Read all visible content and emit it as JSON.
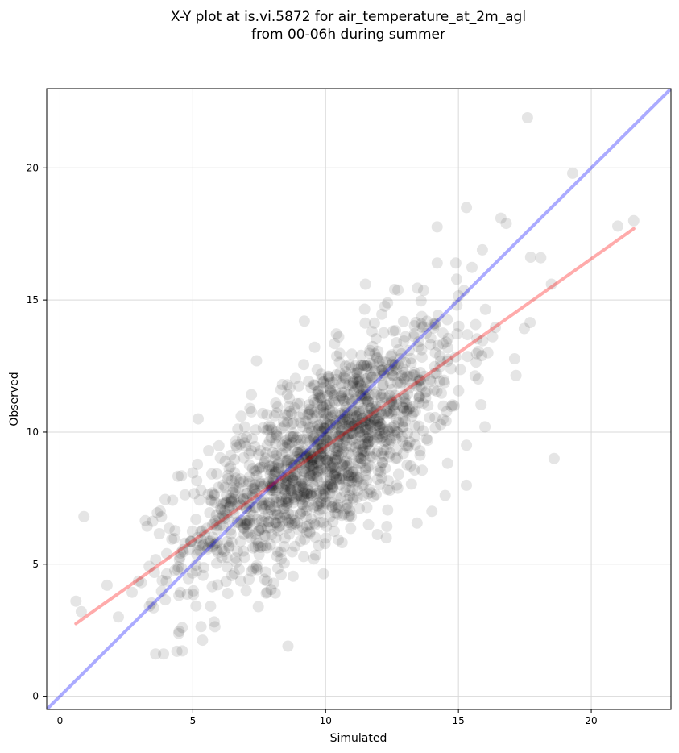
{
  "chart_data": {
    "type": "scatter",
    "title": "X-Y plot at is.vi.5872 for air_temperature_at_2m_agl",
    "subtitle": "from 00-06h during summer",
    "xlabel": "Simulated",
    "ylabel": "Observed",
    "xlim": [
      -0.5,
      23
    ],
    "ylim": [
      -0.5,
      23
    ],
    "xticks": [
      0,
      5,
      10,
      15,
      20
    ],
    "yticks": [
      0,
      5,
      10,
      15,
      20
    ],
    "grid": true,
    "point_color": "#000000",
    "point_alpha": 0.1,
    "identity_line": {
      "color": "#0000ff",
      "alpha": 0.33,
      "from": [
        -0.5,
        -0.5
      ],
      "to": [
        23,
        23
      ]
    },
    "regression_line": {
      "color": "#ff0000",
      "alpha": 0.33,
      "from": [
        0.6,
        2.75
      ],
      "to": [
        21.6,
        17.7
      ]
    },
    "outlier_points": {
      "x": [
        17.6,
        19.3,
        15.3,
        16.6,
        16.8,
        21.0,
        21.6,
        18.1,
        18.5,
        18.6,
        0.9,
        0.6,
        0.8,
        2.2,
        3.6,
        3.9,
        4.4,
        4.6,
        5.2,
        7.4,
        14.0,
        14.5,
        15.3,
        16.0,
        15.9,
        11.5,
        14.9,
        14.2,
        9.2,
        12.6
      ],
      "y": [
        21.9,
        19.8,
        18.5,
        18.1,
        17.9,
        17.8,
        18.0,
        16.6,
        15.6,
        9.0,
        6.8,
        3.6,
        3.2,
        3.0,
        1.6,
        1.6,
        1.7,
        2.6,
        10.5,
        12.7,
        7.0,
        7.6,
        9.5,
        10.2,
        16.9,
        15.6,
        16.4,
        16.4,
        14.2,
        15.4
      ]
    },
    "cluster_points": {
      "count": 1500,
      "x_center": 9.9,
      "y_center": 9.2,
      "x_sd": 2.6,
      "y_sd": 2.4,
      "correlation": 0.72
    }
  }
}
